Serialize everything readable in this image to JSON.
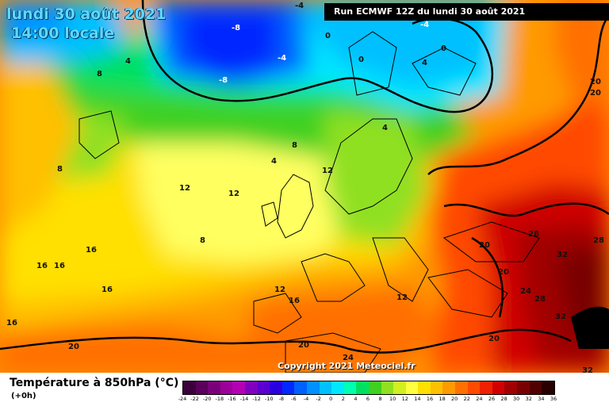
{
  "header": {
    "date": "lundi 30 août 2021",
    "time": "14:00 locale",
    "run": "Run ECMWF 12Z du lundi 30 août 2021"
  },
  "footer": {
    "copyright": "Copyright 2021 Meteociel.fr",
    "legend_title": "Température à 850hPa (°C)",
    "legend_sub": "(+0h)"
  },
  "legend": {
    "ticks": [
      "-24",
      "-22",
      "-20",
      "-18",
      "-16",
      "-14",
      "-12",
      "-10",
      "-8",
      "-6",
      "-4",
      "-2",
      "0",
      "2",
      "4",
      "6",
      "8",
      "10",
      "12",
      "14",
      "16",
      "18",
      "20",
      "22",
      "24",
      "26",
      "28",
      "30",
      "32",
      "34",
      "36"
    ],
    "colors": [
      "#3b003b",
      "#5a005a",
      "#7a007a",
      "#9a009a",
      "#b300b3",
      "#8000c0",
      "#5a00d0",
      "#2a00e0",
      "#0028ff",
      "#0060ff",
      "#0090ff",
      "#00c0ff",
      "#00e8ff",
      "#00ffb0",
      "#00e060",
      "#40d020",
      "#90e020",
      "#d0f020",
      "#ffff40",
      "#ffe000",
      "#ffc000",
      "#ff9a00",
      "#ff7000",
      "#ff4a00",
      "#f02000",
      "#d00000",
      "#a00000",
      "#780000",
      "#500000",
      "#280000"
    ]
  },
  "isotherm_labels": [
    "-8",
    "-8",
    "-4",
    "-4",
    "0",
    "0",
    "0",
    "-4",
    "4",
    "4",
    "8",
    "4",
    "8",
    "4",
    "8",
    "12",
    "12",
    "12",
    "8",
    "16",
    "16",
    "16",
    "16",
    "16",
    "12",
    "12",
    "16",
    "20",
    "20",
    "24",
    "28",
    "28",
    "32",
    "20",
    "24",
    "28",
    "32",
    "20",
    "32",
    "20",
    "20",
    "20"
  ]
}
